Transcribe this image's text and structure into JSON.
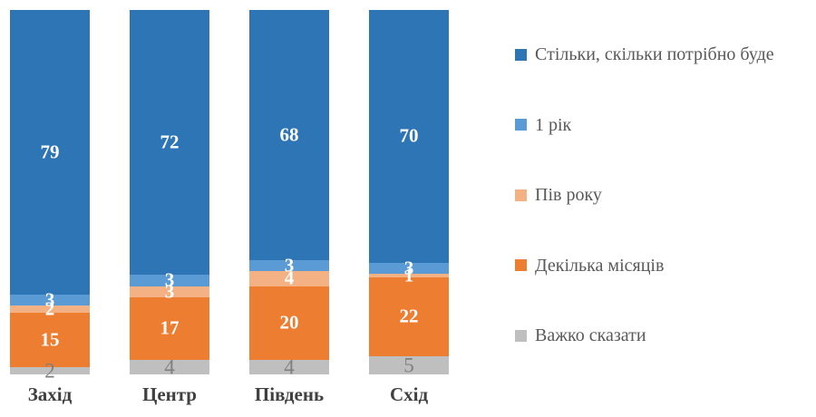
{
  "chart_data": {
    "type": "bar",
    "variant": "stacked-100-percent",
    "orientation": "vertical-columns",
    "title": "",
    "xlabel": "",
    "ylabel": "",
    "grid": false,
    "background": "#ffffff",
    "legend_position": "right",
    "legend_text_color": "#595959",
    "axis_label_color": "#404040",
    "categories": [
      "Захід",
      "Центр",
      "Південь",
      "Схід"
    ],
    "series": [
      {
        "name": "Стільки, скільки потрібно буде",
        "color": "#2e75b6",
        "label_color": "#ffffff",
        "label_bold": true,
        "values": [
          79,
          72,
          68,
          70
        ]
      },
      {
        "name": "1 рік",
        "color": "#5b9bd5",
        "label_color": "#ffffff",
        "label_bold": true,
        "values": [
          3,
          3,
          3,
          3
        ]
      },
      {
        "name": "Пів року",
        "color": "#f4b183",
        "label_color": "#ffffff",
        "label_bold": true,
        "values": [
          2,
          3,
          4,
          1
        ]
      },
      {
        "name": "Декілька місяців",
        "color": "#ed7d31",
        "label_color": "#ffffff",
        "label_bold": true,
        "values": [
          15,
          17,
          20,
          22
        ]
      },
      {
        "name": "Важко сказати",
        "color": "#bfbfbf",
        "label_color": "#7f7f7f",
        "label_bold": false,
        "values": [
          2,
          4,
          4,
          5
        ]
      }
    ]
  }
}
